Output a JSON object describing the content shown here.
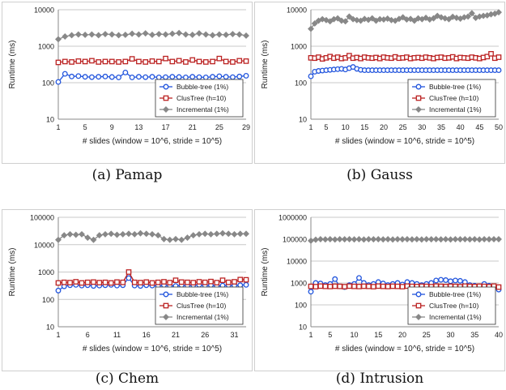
{
  "chart_data": [
    {
      "type": "line",
      "caption": "(a) Pamap",
      "xlabel": "# slides (window = 10^6, stride = 10^5)",
      "ylabel": "Runtime (ms)",
      "yscale": "log",
      "ylim": [
        10,
        10000
      ],
      "yticks": [
        "10",
        "100",
        "1000",
        "10000"
      ],
      "xlim": [
        1,
        29
      ],
      "xticks": [
        "1",
        "5",
        "9",
        "13",
        "17",
        "21",
        "25",
        "29"
      ],
      "legend_position": "bottom-right",
      "grid": "horizontal",
      "x": [
        1,
        2,
        3,
        4,
        5,
        6,
        7,
        8,
        9,
        10,
        11,
        12,
        13,
        14,
        15,
        16,
        17,
        18,
        19,
        20,
        21,
        22,
        23,
        24,
        25,
        26,
        27,
        28,
        29
      ],
      "series": [
        {
          "name": "Bubble-tree (1%)",
          "color": "#2255dd",
          "marker": "circle",
          "values": [
            105,
            175,
            148,
            152,
            145,
            142,
            145,
            148,
            143,
            140,
            190,
            140,
            145,
            142,
            145,
            140,
            142,
            145,
            143,
            140,
            145,
            142,
            140,
            145,
            150,
            145,
            142,
            148,
            155
          ]
        },
        {
          "name": "ClusTree (h=10)",
          "color": "#bb2222",
          "marker": "square",
          "values": [
            360,
            380,
            370,
            390,
            380,
            400,
            370,
            380,
            380,
            370,
            380,
            450,
            380,
            370,
            390,
            380,
            460,
            380,
            400,
            370,
            420,
            380,
            370,
            380,
            460,
            380,
            370,
            400,
            390
          ]
        },
        {
          "name": "Incremental (1%)",
          "color": "#888888",
          "marker": "diamond",
          "values": [
            1550,
            1850,
            2000,
            2100,
            2050,
            2100,
            2000,
            2150,
            2100,
            2000,
            2050,
            2200,
            2100,
            2250,
            2050,
            2150,
            2100,
            2200,
            2300,
            2100,
            2050,
            2250,
            2100,
            2000,
            2100,
            2050,
            2150,
            2100,
            1950
          ]
        }
      ]
    },
    {
      "type": "line",
      "caption": "(b) Gauss",
      "xlabel": "# slides (window = 10^6, stride = 10^5)",
      "ylabel": "Runtime (ms)",
      "yscale": "log",
      "ylim": [
        10,
        10000
      ],
      "yticks": [
        "10",
        "100",
        "1000",
        "10000"
      ],
      "xlim": [
        1,
        50
      ],
      "xticks": [
        "1",
        "5",
        "10",
        "15",
        "20",
        "25",
        "30",
        "35",
        "40",
        "45",
        "50"
      ],
      "legend_position": "bottom-right",
      "grid": "horizontal",
      "x": [
        1,
        2,
        3,
        4,
        5,
        6,
        7,
        8,
        9,
        10,
        11,
        12,
        13,
        14,
        15,
        16,
        17,
        18,
        19,
        20,
        21,
        22,
        23,
        24,
        25,
        26,
        27,
        28,
        29,
        30,
        31,
        32,
        33,
        34,
        35,
        36,
        37,
        38,
        39,
        40,
        41,
        42,
        43,
        44,
        45,
        46,
        47,
        48,
        49,
        50
      ],
      "series": [
        {
          "name": "Bubble-tree (1%)",
          "color": "#2255dd",
          "marker": "circle",
          "values": [
            150,
            200,
            210,
            215,
            220,
            225,
            230,
            235,
            240,
            230,
            250,
            270,
            240,
            225,
            220,
            220,
            220,
            220,
            220,
            220,
            220,
            220,
            220,
            220,
            220,
            220,
            220,
            220,
            220,
            220,
            220,
            220,
            220,
            220,
            220,
            220,
            220,
            220,
            220,
            220,
            220,
            220,
            220,
            220,
            220,
            220,
            220,
            220,
            220,
            220
          ]
        },
        {
          "name": "ClusTree (h=10)",
          "color": "#bb2222",
          "marker": "square",
          "values": [
            480,
            470,
            500,
            450,
            480,
            520,
            470,
            500,
            460,
            480,
            550,
            470,
            490,
            460,
            500,
            480,
            470,
            490,
            460,
            500,
            480,
            470,
            510,
            470,
            480,
            500,
            460,
            480,
            490,
            470,
            500,
            480,
            460,
            490,
            500,
            470,
            480,
            510,
            460,
            490,
            480,
            470,
            500,
            480,
            460,
            490,
            520,
            620,
            470,
            500
          ]
        },
        {
          "name": "Incremental (1%)",
          "color": "#888888",
          "marker": "diamond",
          "values": [
            3000,
            4200,
            5000,
            5500,
            5200,
            4800,
            5500,
            5800,
            5000,
            4800,
            6500,
            5500,
            5200,
            5000,
            5600,
            5300,
            5800,
            5000,
            5500,
            5400,
            5700,
            5200,
            5000,
            5600,
            6200,
            5400,
            5600,
            5000,
            5800,
            5500,
            6000,
            5400,
            5800,
            6800,
            6200,
            5800,
            5500,
            6400,
            6000,
            5700,
            6200,
            6500,
            8000,
            6000,
            6500,
            6800,
            7000,
            7500,
            7800,
            8500
          ]
        }
      ]
    },
    {
      "type": "line",
      "caption": "(c) Chem",
      "xlabel": "# slides (window = 10^6, stride = 10^5)",
      "ylabel": "Runtime (ms)",
      "yscale": "log",
      "ylim": [
        10,
        100000
      ],
      "yticks": [
        "10",
        "100",
        "1000",
        "10000",
        "100000"
      ],
      "xlim": [
        1,
        33
      ],
      "xticks": [
        "1",
        "6",
        "11",
        "16",
        "21",
        "26",
        "31"
      ],
      "legend_position": "bottom-right",
      "grid": "horizontal",
      "x": [
        1,
        2,
        3,
        4,
        5,
        6,
        7,
        8,
        9,
        10,
        11,
        12,
        13,
        14,
        15,
        16,
        17,
        18,
        19,
        20,
        21,
        22,
        23,
        24,
        25,
        26,
        27,
        28,
        29,
        30,
        31,
        32,
        33
      ],
      "series": [
        {
          "name": "Bubble-tree (1%)",
          "color": "#2255dd",
          "marker": "circle",
          "values": [
            210,
            300,
            330,
            340,
            320,
            330,
            310,
            320,
            330,
            340,
            320,
            330,
            600,
            320,
            310,
            330,
            320,
            310,
            330,
            320,
            310,
            330,
            320,
            330,
            340,
            320,
            330,
            310,
            320,
            330,
            320,
            330,
            340
          ]
        },
        {
          "name": "ClusTree (h=10)",
          "color": "#bb2222",
          "marker": "square",
          "values": [
            400,
            420,
            410,
            440,
            400,
            420,
            430,
            410,
            420,
            400,
            430,
            420,
            1000,
            420,
            410,
            430,
            400,
            420,
            440,
            410,
            500,
            430,
            420,
            410,
            440,
            420,
            450,
            410,
            500,
            420,
            440,
            530,
            520
          ]
        },
        {
          "name": "Incremental (1%)",
          "color": "#888888",
          "marker": "diamond",
          "values": [
            15000,
            22000,
            24000,
            23000,
            24000,
            18000,
            15000,
            22000,
            24000,
            25000,
            23000,
            24000,
            25000,
            24000,
            26000,
            25000,
            24000,
            22000,
            16000,
            15000,
            16000,
            15000,
            18000,
            22000,
            24000,
            25000,
            24000,
            25000,
            26000,
            25000,
            24000,
            25000,
            25000
          ]
        }
      ]
    },
    {
      "type": "line",
      "caption": "(d) Intrusion",
      "xlabel": "# slides (window = 10^6, stride = 10^5)",
      "ylabel": "Runtime (ms)",
      "yscale": "log",
      "ylim": [
        10,
        1000000
      ],
      "yticks": [
        "10",
        "100",
        "1000",
        "10000",
        "100000",
        "1000000"
      ],
      "xlim": [
        1,
        40
      ],
      "xticks": [
        "1",
        "5",
        "10",
        "15",
        "20",
        "25",
        "30",
        "35",
        "40"
      ],
      "legend_position": "bottom-right",
      "grid": "horizontal",
      "x": [
        1,
        2,
        3,
        4,
        5,
        6,
        7,
        8,
        9,
        10,
        11,
        12,
        13,
        14,
        15,
        16,
        17,
        18,
        19,
        20,
        21,
        22,
        23,
        24,
        25,
        26,
        27,
        28,
        29,
        30,
        31,
        32,
        33,
        34,
        35,
        36,
        37,
        38,
        39,
        40
      ],
      "series": [
        {
          "name": "Bubble-tree (1%)",
          "color": "#2255dd",
          "marker": "circle",
          "values": [
            400,
            1000,
            950,
            800,
            900,
            1500,
            700,
            650,
            800,
            900,
            1700,
            1000,
            800,
            900,
            1100,
            950,
            800,
            900,
            1000,
            850,
            1100,
            1000,
            900,
            800,
            900,
            1000,
            1300,
            1400,
            1350,
            1200,
            1300,
            1250,
            1100,
            800,
            750,
            700,
            900,
            750,
            650,
            500
          ]
        },
        {
          "name": "ClusTree (h=10)",
          "color": "#bb2222",
          "marker": "square",
          "values": [
            700,
            680,
            720,
            700,
            690,
            710,
            700,
            680,
            720,
            700,
            690,
            710,
            700,
            680,
            720,
            700,
            690,
            710,
            700,
            680,
            720,
            700,
            690,
            710,
            700,
            680,
            720,
            700,
            690,
            710,
            700,
            680,
            720,
            700,
            690,
            710,
            700,
            680,
            720,
            650
          ]
        },
        {
          "name": "Incremental (1%)",
          "color": "#888888",
          "marker": "diamond",
          "values": [
            85000,
            95000,
            100000,
            98000,
            100000,
            97000,
            100000,
            99000,
            100000,
            98000,
            100000,
            97000,
            100000,
            99000,
            100000,
            98000,
            100000,
            97000,
            100000,
            99000,
            100000,
            98000,
            100000,
            97000,
            100000,
            99000,
            100000,
            98000,
            100000,
            97000,
            100000,
            99000,
            100000,
            98000,
            100000,
            97000,
            100000,
            99000,
            100000,
            100000
          ]
        }
      ]
    }
  ]
}
